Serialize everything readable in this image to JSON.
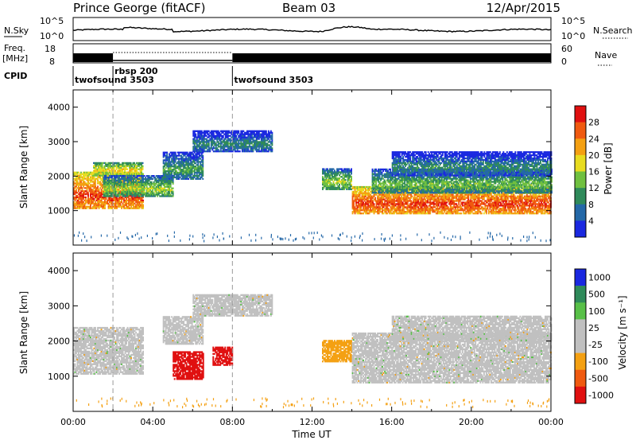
{
  "header": {
    "station": "Prince George (fitACF)",
    "beam": "Beam 03",
    "date": "12/Apr/2015"
  },
  "strip": {
    "nsky_label": "N.Sky",
    "nsearch_label": "N.Search",
    "nsky_ticks": [
      "10^5",
      "10^0"
    ],
    "freq_label_1": "Freq.",
    "freq_label_2": "[MHz]",
    "freq_ticks": [
      "18",
      "8"
    ],
    "nave_label": "Nave",
    "nave_ticks": [
      "60",
      "0"
    ],
    "cpid_label": "CPID"
  },
  "cpid_segments": [
    {
      "name": "twofsound 3503",
      "start_h": 0.0,
      "end_h": 2.0
    },
    {
      "name": "rbsp 200",
      "start_h": 2.0,
      "end_h": 8.0
    },
    {
      "name": "twofsound 3503",
      "start_h": 8.0,
      "end_h": 24.0
    }
  ],
  "chart_data": [
    {
      "type": "heatmap",
      "panel": "power",
      "ylabel": "Slant Range [km]",
      "ylim": [
        0,
        4500
      ],
      "yticks": [
        "1000",
        "2000",
        "3000",
        "4000"
      ],
      "xlim": [
        0,
        24
      ],
      "colorbar_label": "Power [dB]",
      "colorbar_ticks": [
        "28",
        "24",
        "20",
        "16",
        "12",
        "8",
        "4"
      ],
      "colors": [
        "#e01010",
        "#f05a10",
        "#f4a012",
        "#e8dc20",
        "#70c040",
        "#2f8a5a",
        "#2468a8",
        "#1a28e0"
      ],
      "echo_bands": [
        {
          "start_h": 0.0,
          "end_h": 3.5,
          "range_low": 1050,
          "range_high": 2100,
          "level": 26
        },
        {
          "start_h": 1.0,
          "end_h": 3.5,
          "range_low": 2000,
          "range_high": 2400,
          "level": 18
        },
        {
          "start_h": 1.5,
          "end_h": 5.0,
          "range_low": 1400,
          "range_high": 2000,
          "level": 14
        },
        {
          "start_h": 4.5,
          "end_h": 6.5,
          "range_low": 1900,
          "range_high": 2700,
          "level": 10
        },
        {
          "start_h": 6.0,
          "end_h": 10.0,
          "range_low": 2700,
          "range_high": 3300,
          "level": 8
        },
        {
          "start_h": 12.5,
          "end_h": 14.0,
          "range_low": 1600,
          "range_high": 2200,
          "level": 14
        },
        {
          "start_h": 14.0,
          "end_h": 24.0,
          "range_low": 900,
          "range_high": 1700,
          "level": 26
        },
        {
          "start_h": 15.0,
          "end_h": 24.0,
          "range_low": 1500,
          "range_high": 2200,
          "level": 12
        },
        {
          "start_h": 16.0,
          "end_h": 24.0,
          "range_low": 2000,
          "range_high": 2700,
          "level": 8
        }
      ]
    },
    {
      "type": "heatmap",
      "panel": "velocity",
      "ylabel": "Slant Range [km]",
      "ylim": [
        0,
        4500
      ],
      "yticks": [
        "1000",
        "2000",
        "3000",
        "4000"
      ],
      "xlim": [
        0,
        24
      ],
      "xlabel": "Time UT",
      "xticks": [
        "00:00",
        "04:00",
        "08:00",
        "12:00",
        "16:00",
        "20:00",
        "00:00"
      ],
      "colorbar_label": "Velocity [m s⁻¹]",
      "colorbar_ticks": [
        "1000",
        "500",
        "100",
        "25",
        "-25",
        "-100",
        "-500",
        "-1000"
      ],
      "colors": [
        "#1a28e0",
        "#2f8a5a",
        "#58c048",
        "#c0c0c0",
        "#c0c0c0",
        "#f4a012",
        "#f05a10",
        "#e01010"
      ],
      "echo_bands": [
        {
          "start_h": 0.0,
          "end_h": 3.5,
          "range_low": 1050,
          "range_high": 2400,
          "level": 0
        },
        {
          "start_h": 4.5,
          "end_h": 6.5,
          "range_low": 1900,
          "range_high": 2700,
          "level": 0
        },
        {
          "start_h": 5.0,
          "end_h": 6.5,
          "range_low": 900,
          "range_high": 1700,
          "level": -800
        },
        {
          "start_h": 7.0,
          "end_h": 8.0,
          "range_low": 1300,
          "range_high": 1800,
          "level": -800
        },
        {
          "start_h": 6.0,
          "end_h": 10.0,
          "range_low": 2700,
          "range_high": 3300,
          "level": 0
        },
        {
          "start_h": 12.5,
          "end_h": 14.0,
          "range_low": 1400,
          "range_high": 2000,
          "level": -200
        },
        {
          "start_h": 14.0,
          "end_h": 24.0,
          "range_low": 800,
          "range_high": 2200,
          "level": 0
        },
        {
          "start_h": 16.0,
          "end_h": 24.0,
          "range_low": 2000,
          "range_high": 2700,
          "level": 0
        }
      ]
    }
  ]
}
